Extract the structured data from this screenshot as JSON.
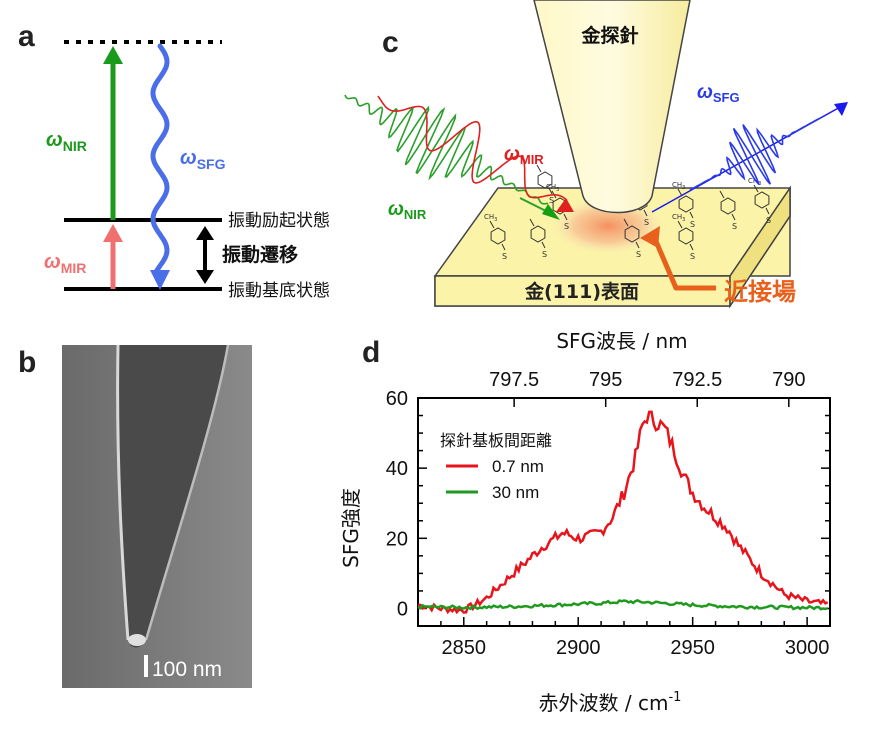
{
  "figure": {
    "panel_letters": {
      "a": "a",
      "b": "b",
      "c": "c",
      "d": "d"
    }
  },
  "panel_a": {
    "omega_nir": "ω",
    "omega_nir_sub": "NIR",
    "omega_sfg": "ω",
    "omega_sfg_sub": "SFG",
    "omega_mir": "ω",
    "omega_mir_sub": "MIR",
    "level_excited": "振動励起状態",
    "level_ground": "振動基底状態",
    "transition": "振動遷移",
    "colors": {
      "nir": "#1a9a1a",
      "sfg": "#4a6ee8",
      "mir": "#f07070"
    }
  },
  "panel_b": {
    "scale_bar": "100 nm"
  },
  "panel_c": {
    "tip_label": "金探針",
    "surface_label": "金(111)表面",
    "near_field_label": "近接場",
    "omega_sfg": "ω",
    "omega_sfg_sub": "SFG",
    "omega_mir": "ω",
    "omega_mir_sub": "MIR",
    "omega_nir": "ω",
    "omega_nir_sub": "NIR",
    "molecule_ch3": "CH",
    "molecule_ch3_sub": "3",
    "molecule_s": "S",
    "colors": {
      "near_field": "#e8601c",
      "tip": "#fff6b0",
      "surface": "#fbf3a8"
    }
  },
  "panel_d": {
    "top_axis_title": "SFG波長 / nm",
    "xlabel": "赤外波数 / cm",
    "xlabel_sup": "-1",
    "ylabel": "SFG強度",
    "legend_title": "探針基板間距離",
    "chart_data": {
      "type": "line",
      "title": "",
      "xlabel": "赤外波数 / cm-1",
      "ylabel": "SFG強度",
      "xlim": [
        2830,
        3010
      ],
      "ylim": [
        -5,
        60
      ],
      "x_ticks": [
        2850,
        2900,
        2950,
        3000
      ],
      "y_ticks": [
        0,
        20,
        40,
        60
      ],
      "top_axis": {
        "title": "SFG波長 / nm",
        "ticks": [
          {
            "label": "797.5",
            "wavenumber": 2872
          },
          {
            "label": "795",
            "wavenumber": 2912
          },
          {
            "label": "792.5",
            "wavenumber": 2952
          },
          {
            "label": "790",
            "wavenumber": 2992
          }
        ]
      },
      "legend_title": "探針基板間距離",
      "series": [
        {
          "name": "0.7 nm",
          "color": "#e8131b",
          "x": [
            2830,
            2840,
            2850,
            2855,
            2860,
            2865,
            2870,
            2875,
            2880,
            2885,
            2890,
            2893,
            2896,
            2900,
            2905,
            2910,
            2915,
            2920,
            2925,
            2928,
            2930,
            2932,
            2935,
            2938,
            2942,
            2946,
            2950,
            2955,
            2960,
            2965,
            2970,
            2975,
            2980,
            2985,
            2990,
            2995,
            3000,
            3005,
            3010
          ],
          "y": [
            1,
            0,
            -0.5,
            1,
            3,
            6,
            9,
            12,
            15,
            18,
            20,
            21.5,
            21,
            20,
            20.5,
            22,
            26,
            33,
            43,
            52,
            55,
            54,
            53,
            51,
            45,
            38,
            33,
            29,
            26,
            23,
            18,
            14,
            10,
            7,
            4,
            3,
            2,
            1.5,
            1
          ]
        },
        {
          "name": "30 nm",
          "color": "#1f9a1f",
          "x": [
            2830,
            2850,
            2870,
            2890,
            2910,
            2920,
            2930,
            2950,
            2970,
            2990,
            3010
          ],
          "y": [
            0.5,
            0.3,
            0.5,
            1.0,
            1.5,
            2.0,
            1.8,
            1.0,
            0.5,
            0.3,
            0.2
          ]
        }
      ]
    }
  }
}
